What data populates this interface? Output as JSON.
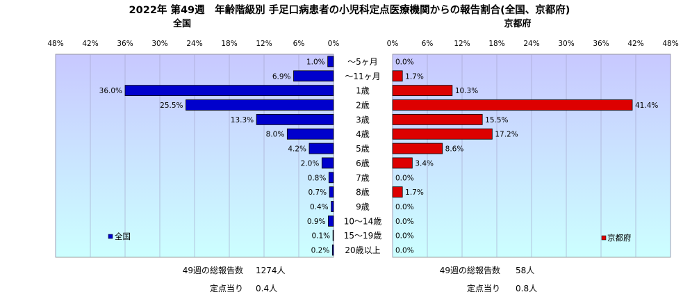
{
  "title": "2022年 第49週　年齢階級別 手足口病患者の小児科定点医療機関からの報告割合(全国、京都府)",
  "colors": {
    "national": "#0000cc",
    "kyoto": "#dd0000"
  },
  "chart_data": [
    {
      "type": "bar",
      "orientation": "horizontal",
      "direction": "right-to-left",
      "title": "全国",
      "categories": [
        "～5ヶ月",
        "～11ヶ月",
        "1歳",
        "2歳",
        "3歳",
        "4歳",
        "5歳",
        "6歳",
        "7歳",
        "8歳",
        "9歳",
        "10～14歳",
        "15～19歳",
        "20歳以上"
      ],
      "series": [
        {
          "name": "全国",
          "values": [
            1.0,
            6.9,
            36.0,
            25.5,
            13.3,
            8.0,
            4.2,
            2.0,
            0.8,
            0.7,
            0.4,
            0.9,
            0.1,
            0.2
          ]
        }
      ],
      "data_labels": [
        "1.0%",
        "6.9%",
        "36.0%",
        "25.5%",
        "13.3%",
        "8.0%",
        "4.2%",
        "2.0%",
        "0.8%",
        "0.7%",
        "0.4%",
        "0.9%",
        "0.1%",
        "0.2%"
      ],
      "xlim": [
        0,
        48
      ],
      "ticks": [
        48,
        42,
        36,
        30,
        24,
        18,
        12,
        6,
        0
      ],
      "tick_labels": [
        "48%",
        "42%",
        "36%",
        "30%",
        "24%",
        "18%",
        "12%",
        "6%",
        "0%"
      ],
      "grid": true,
      "legend": "bottom-left",
      "stats": [
        {
          "label": "49週の総報告数",
          "value": "1274人"
        },
        {
          "label": "定点当り",
          "value": "0.4人"
        }
      ]
    },
    {
      "type": "bar",
      "orientation": "horizontal",
      "direction": "left-to-right",
      "title": "京都府",
      "categories": [
        "～5ヶ月",
        "～11ヶ月",
        "1歳",
        "2歳",
        "3歳",
        "4歳",
        "5歳",
        "6歳",
        "7歳",
        "8歳",
        "9歳",
        "10～14歳",
        "15～19歳",
        "20歳以上"
      ],
      "series": [
        {
          "name": "京都府",
          "values": [
            0.0,
            1.7,
            10.3,
            41.4,
            15.5,
            17.2,
            8.6,
            3.4,
            0.0,
            1.7,
            0.0,
            0.0,
            0.0,
            0.0
          ]
        }
      ],
      "data_labels": [
        "0.0%",
        "1.7%",
        "10.3%",
        "41.4%",
        "15.5%",
        "17.2%",
        "8.6%",
        "3.4%",
        "0.0%",
        "1.7%",
        "0.0%",
        "0.0%",
        "0.0%",
        "0.0%"
      ],
      "xlim": [
        0,
        48
      ],
      "ticks": [
        0,
        6,
        12,
        18,
        24,
        30,
        36,
        42,
        48
      ],
      "tick_labels": [
        "0%",
        "6%",
        "12%",
        "18%",
        "24%",
        "30%",
        "36%",
        "42%",
        "48%"
      ],
      "grid": true,
      "legend": "bottom-right",
      "stats": [
        {
          "label": "49週の総報告数",
          "value": "58人"
        },
        {
          "label": "定点当り",
          "value": "0.8人"
        }
      ]
    }
  ]
}
